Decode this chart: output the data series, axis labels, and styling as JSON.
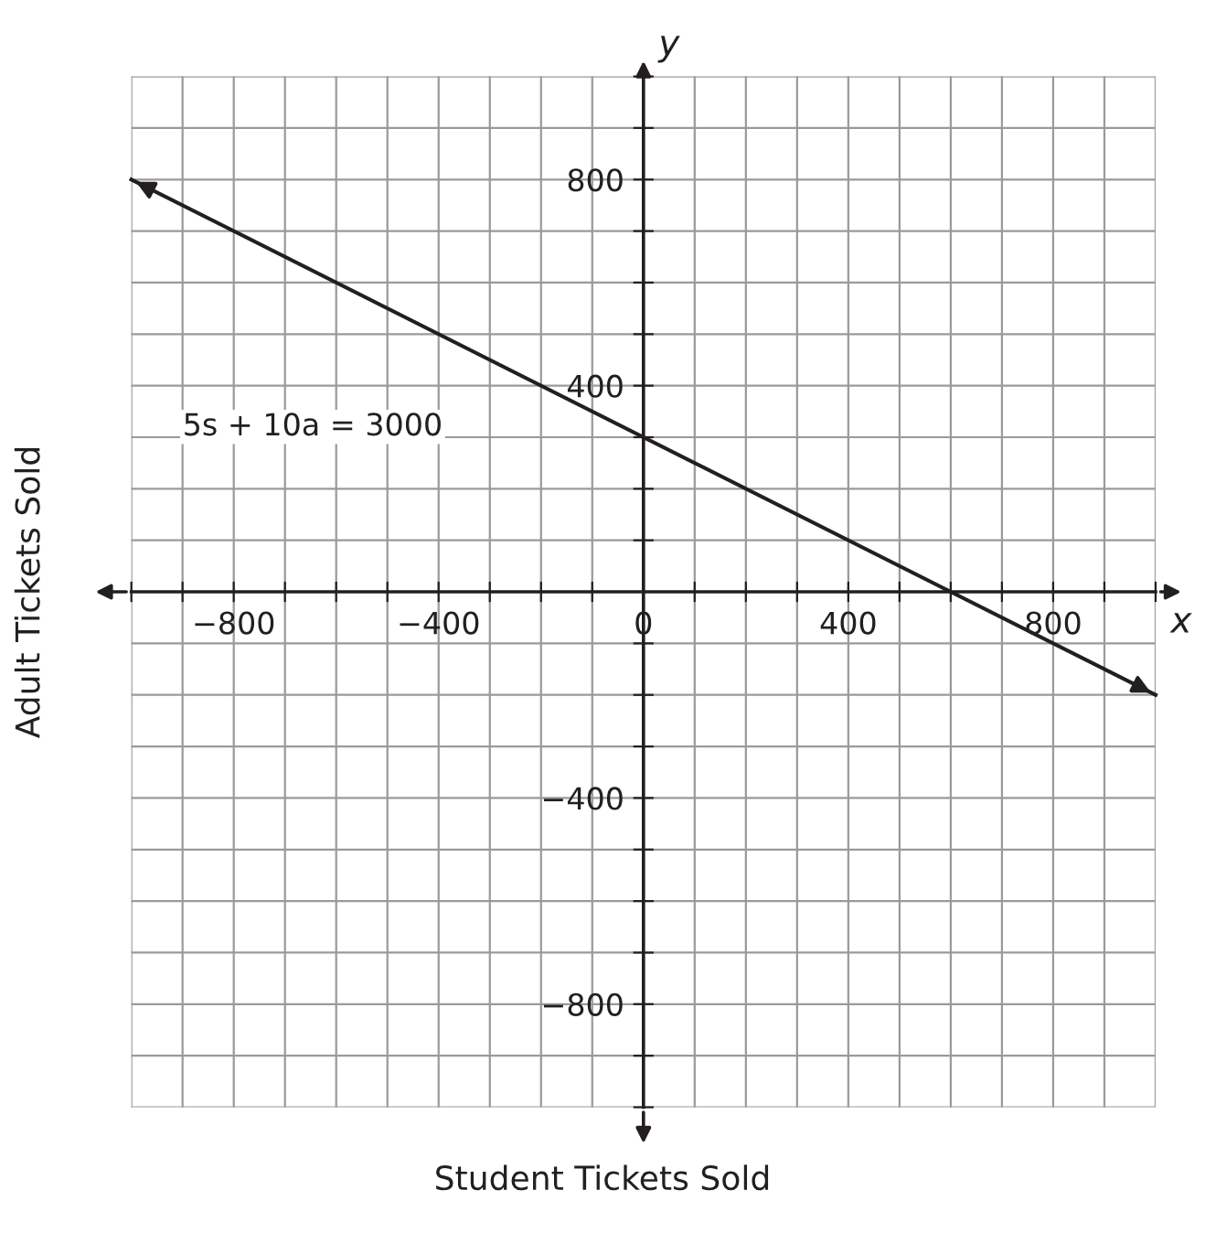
{
  "chart_data": {
    "type": "line",
    "xlabel": "Student Tickets Sold",
    "ylabel": "Adult Tickets Sold",
    "series": [
      {
        "x": [
          -1000,
          1000
        ],
        "values": [
          800,
          -200
        ],
        "color": "#231f20"
      }
    ],
    "xlim": [
      -1000,
      1000
    ],
    "ylim": [
      -1000,
      1000
    ],
    "xticks": [
      {
        "value": -1000,
        "label": null
      },
      {
        "value": -900,
        "label": null
      },
      -800,
      {
        "value": -700,
        "label": null
      },
      {
        "value": -600,
        "label": null
      },
      {
        "value": -500,
        "label": null
      },
      -400,
      {
        "value": -300,
        "label": null
      },
      {
        "value": -200,
        "label": null
      },
      {
        "value": -100,
        "label": null
      },
      0,
      {
        "value": 100,
        "label": null
      },
      {
        "value": 200,
        "label": null
      },
      {
        "value": 300,
        "label": null
      },
      400,
      {
        "value": 500,
        "label": null
      },
      {
        "value": 600,
        "label": null
      },
      {
        "value": 700,
        "label": null
      },
      800,
      {
        "value": 900,
        "label": null
      },
      {
        "value": 1000,
        "label": null
      }
    ],
    "yticks": [
      {
        "value": -1000,
        "label": null
      },
      {
        "value": -900,
        "label": null
      },
      -800,
      {
        "value": -700,
        "label": null
      },
      {
        "value": -600,
        "label": null
      },
      {
        "value": -500,
        "label": null
      },
      -400,
      {
        "value": -300,
        "label": null
      },
      {
        "value": -200,
        "label": null
      },
      {
        "value": -100,
        "label": null
      },
      {
        "value": 100,
        "label": null
      },
      {
        "value": 200,
        "label": null
      },
      {
        "value": 300,
        "label": null
      },
      400,
      {
        "value": 500,
        "label": null
      },
      {
        "value": 600,
        "label": null
      },
      {
        "value": 700,
        "label": null
      },
      800,
      {
        "value": 900,
        "label": null
      },
      {
        "value": 1000,
        "label": null
      }
    ],
    "grid": true,
    "marker": "none",
    "line_style": "solid",
    "legend": false,
    "annotations": [
      "5s + 10a = 3000",
      "x",
      "y"
    ]
  }
}
